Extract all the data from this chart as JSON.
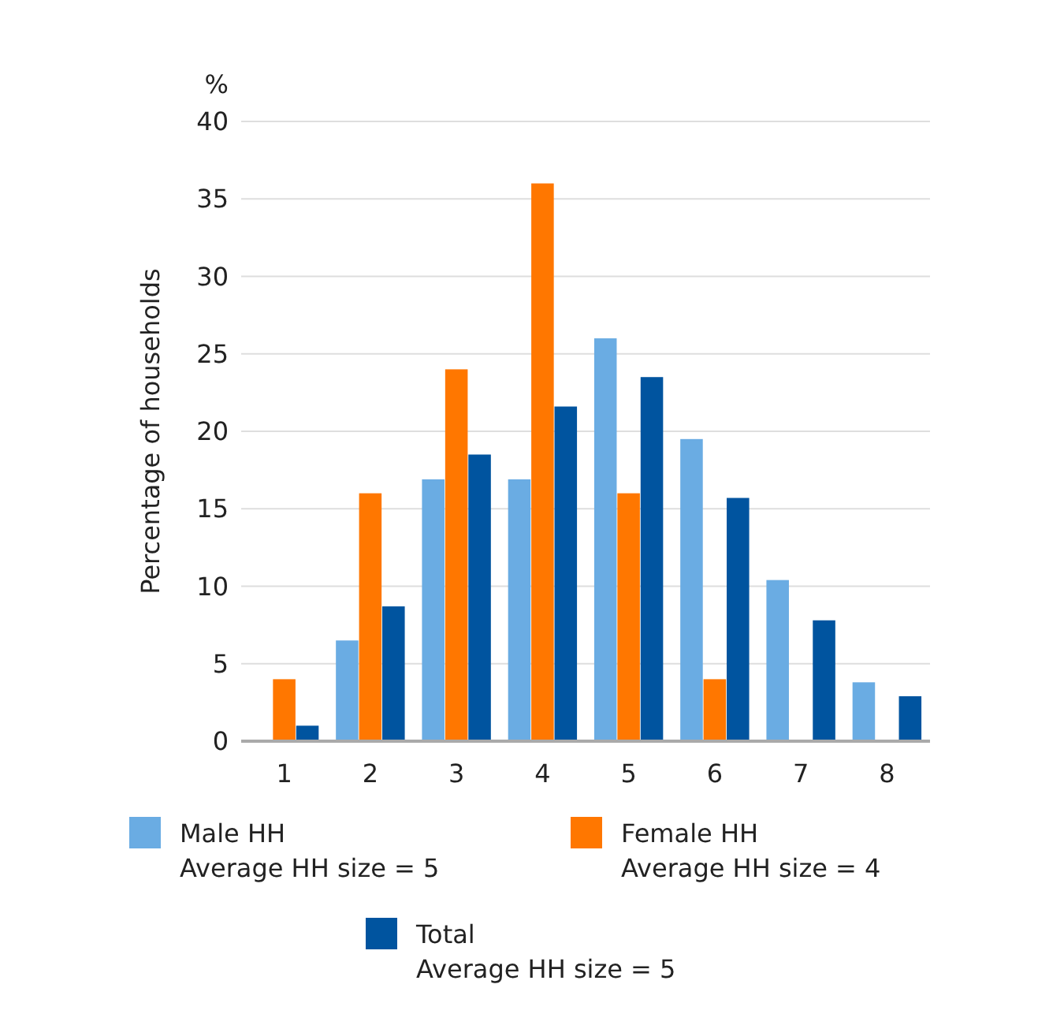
{
  "chart_data": {
    "type": "bar",
    "ylabel": "Percentage of households",
    "annotations": [
      "%"
    ],
    "categories": [
      "1",
      "2",
      "3",
      "4",
      "5",
      "6",
      "7",
      "8"
    ],
    "series": [
      {
        "name": "Male HH\nAverage HH size = 5",
        "color": "#6aace3",
        "values": [
          0,
          6.5,
          16.9,
          16.9,
          26,
          19.5,
          10.4,
          3.8
        ]
      },
      {
        "name": "Female HH\nAverage HH size = 4",
        "color": "#ff7700",
        "values": [
          4,
          16,
          24,
          36,
          16,
          4,
          0,
          0
        ]
      },
      {
        "name": "Total\nAverage HH size = 5",
        "color": "#00549f",
        "values": [
          1,
          8.7,
          18.5,
          21.6,
          23.5,
          15.7,
          7.8,
          2.9
        ]
      }
    ],
    "ylim": [
      0,
      40
    ],
    "yticks": [
      0,
      5,
      10,
      15,
      20,
      25,
      30,
      35,
      40
    ],
    "grid": "y",
    "legend": "bottom"
  }
}
